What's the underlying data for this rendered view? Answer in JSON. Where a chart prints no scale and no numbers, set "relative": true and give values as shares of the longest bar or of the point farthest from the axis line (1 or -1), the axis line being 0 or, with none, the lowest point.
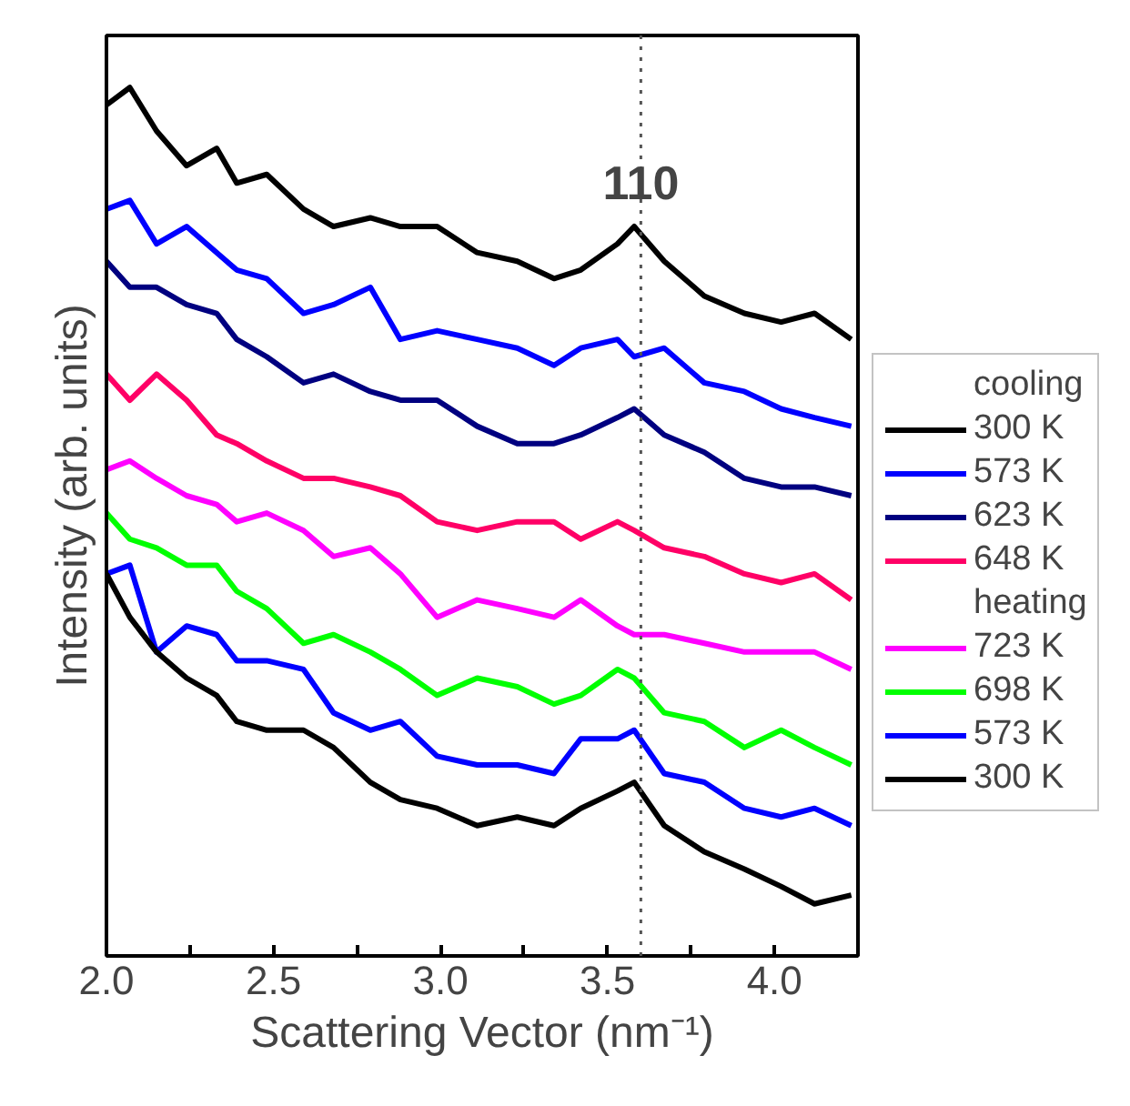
{
  "chart_data": {
    "type": "line",
    "relative": true,
    "xlabel": "Scattering Vector (nm⁻¹)",
    "ylabel": "Intensity (arb. units)",
    "x": [
      2.0,
      2.07,
      2.15,
      2.24,
      2.33,
      2.39,
      2.48,
      2.59,
      2.68,
      2.79,
      2.88,
      2.99,
      3.11,
      3.23,
      3.34,
      3.42,
      3.53,
      3.58,
      3.67,
      3.79,
      3.91,
      4.02,
      4.12,
      4.23
    ],
    "xlim": [
      2.0,
      4.25
    ],
    "xticks": [
      {
        "value": 2,
        "label": "2.0"
      },
      {
        "value": 2.25,
        "label": null
      },
      2.5,
      {
        "value": 2.75,
        "label": null
      },
      {
        "value": 3,
        "label": "3.0"
      },
      {
        "value": 3.25,
        "label": null
      },
      3.5,
      {
        "value": 3.75,
        "label": null
      },
      {
        "value": 4,
        "label": "4.0"
      }
    ],
    "tick_labels": "x",
    "grid": false,
    "legend": "right",
    "marker": "none",
    "line_style": "solid",
    "series": [
      {
        "name": "300 K",
        "color": "#000000",
        "values": [
          0.98,
          1.0,
          0.95,
          0.91,
          0.93,
          0.89,
          0.9,
          0.86,
          0.84,
          0.85,
          0.84,
          0.84,
          0.81,
          0.8,
          0.78,
          0.79,
          0.82,
          0.84,
          0.8,
          0.76,
          0.74,
          0.73,
          0.74,
          0.71
        ]
      },
      {
        "name": "573 K",
        "color": "#0000ff",
        "values": [
          0.86,
          0.87,
          0.82,
          0.84,
          0.81,
          0.79,
          0.78,
          0.74,
          0.75,
          0.77,
          0.71,
          0.72,
          0.71,
          0.7,
          0.68,
          0.7,
          0.71,
          0.69,
          0.7,
          0.66,
          0.65,
          0.63,
          0.62,
          0.61
        ]
      },
      {
        "name": "623 K",
        "color": "#000080",
        "values": [
          0.8,
          0.77,
          0.77,
          0.75,
          0.74,
          0.71,
          0.69,
          0.66,
          0.67,
          0.65,
          0.64,
          0.64,
          0.61,
          0.59,
          0.59,
          0.6,
          0.62,
          0.63,
          0.6,
          0.58,
          0.55,
          0.54,
          0.54,
          0.53
        ]
      },
      {
        "name": "648 K",
        "color": "#ff0066",
        "values": [
          0.67,
          0.64,
          0.67,
          0.64,
          0.6,
          0.59,
          0.57,
          0.55,
          0.55,
          0.54,
          0.53,
          0.5,
          0.49,
          0.5,
          0.5,
          0.48,
          0.5,
          0.49,
          0.47,
          0.46,
          0.44,
          0.43,
          0.44,
          0.41
        ]
      },
      {
        "name": "723 K",
        "color": "#ff00ff",
        "values": [
          0.56,
          0.57,
          0.55,
          0.53,
          0.52,
          0.5,
          0.51,
          0.49,
          0.46,
          0.47,
          0.44,
          0.39,
          0.41,
          0.4,
          0.39,
          0.41,
          0.38,
          0.37,
          0.37,
          0.36,
          0.35,
          0.35,
          0.35,
          0.33
        ]
      },
      {
        "name": "698 K",
        "color": "#00ff00",
        "values": [
          0.51,
          0.48,
          0.47,
          0.45,
          0.45,
          0.42,
          0.4,
          0.36,
          0.37,
          0.35,
          0.33,
          0.3,
          0.32,
          0.31,
          0.29,
          0.3,
          0.33,
          0.32,
          0.28,
          0.27,
          0.24,
          0.26,
          0.24,
          0.22
        ]
      },
      {
        "name": "573 K",
        "color": "#0000ff",
        "values": [
          0.44,
          0.45,
          0.35,
          0.38,
          0.37,
          0.34,
          0.34,
          0.33,
          0.28,
          0.26,
          0.27,
          0.23,
          0.22,
          0.22,
          0.21,
          0.25,
          0.25,
          0.26,
          0.21,
          0.2,
          0.17,
          0.16,
          0.17,
          0.15
        ]
      },
      {
        "name": "300 K",
        "color": "#000000",
        "values": [
          0.44,
          0.39,
          0.35,
          0.32,
          0.3,
          0.27,
          0.26,
          0.26,
          0.24,
          0.2,
          0.18,
          0.17,
          0.15,
          0.16,
          0.15,
          0.17,
          0.19,
          0.2,
          0.15,
          0.12,
          0.1,
          0.08,
          0.06,
          0.07
        ]
      }
    ],
    "ref_lines": [
      {
        "axis": "x",
        "value": 3.6,
        "color": "#555555",
        "line_style": "dotted"
      }
    ],
    "annotations": [
      {
        "text": "110",
        "x": 3.6,
        "y": 0.89
      },
      "cooling",
      "heating"
    ]
  }
}
